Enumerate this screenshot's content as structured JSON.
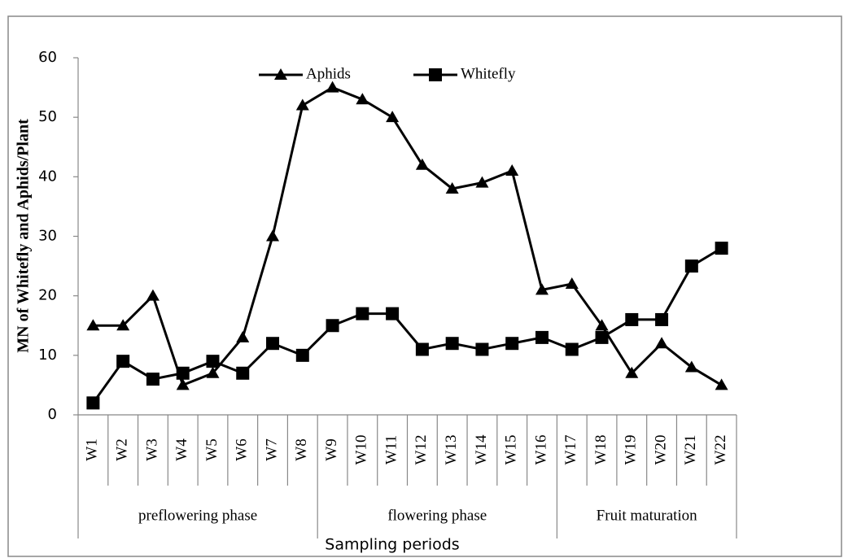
{
  "chart_data": {
    "type": "line",
    "y_label": "MN of Whitefly and Aphids/Plant",
    "x_label": "Sampling periods",
    "categories": [
      "W1",
      "W2",
      "W3",
      "W4",
      "W5",
      "W6",
      "W7",
      "W8",
      "W9",
      "W10",
      "W11",
      "W12",
      "W13",
      "W14",
      "W15",
      "W16",
      "W17",
      "W18",
      "W19",
      "W20",
      "W21",
      "W22"
    ],
    "phases": [
      {
        "name": "preflowering phase",
        "from": "W1",
        "to": "W8"
      },
      {
        "name": "flowering phase",
        "from": "W9",
        "to": "W16"
      },
      {
        "name": "Fruit maturation",
        "from": "W17",
        "to": "W22"
      }
    ],
    "series": [
      {
        "name": "Aphids",
        "color": "#000000",
        "marker": "triangle",
        "values": [
          15,
          15,
          20,
          5,
          7,
          13,
          30,
          52,
          55,
          53,
          50,
          42,
          38,
          39,
          41,
          21,
          22,
          15,
          7,
          12,
          8,
          5
        ]
      },
      {
        "name": "Whitefly",
        "color": "#000000",
        "marker": "square",
        "values": [
          2,
          9,
          6,
          7,
          9,
          7,
          12,
          10,
          15,
          17,
          17,
          11,
          12,
          11,
          12,
          13,
          11,
          13,
          16,
          16,
          25,
          28
        ]
      }
    ],
    "ylim": [
      0,
      60
    ],
    "yticks": [
      0,
      10,
      20,
      30,
      40,
      50,
      60
    ],
    "grid": false,
    "legend": "top"
  }
}
